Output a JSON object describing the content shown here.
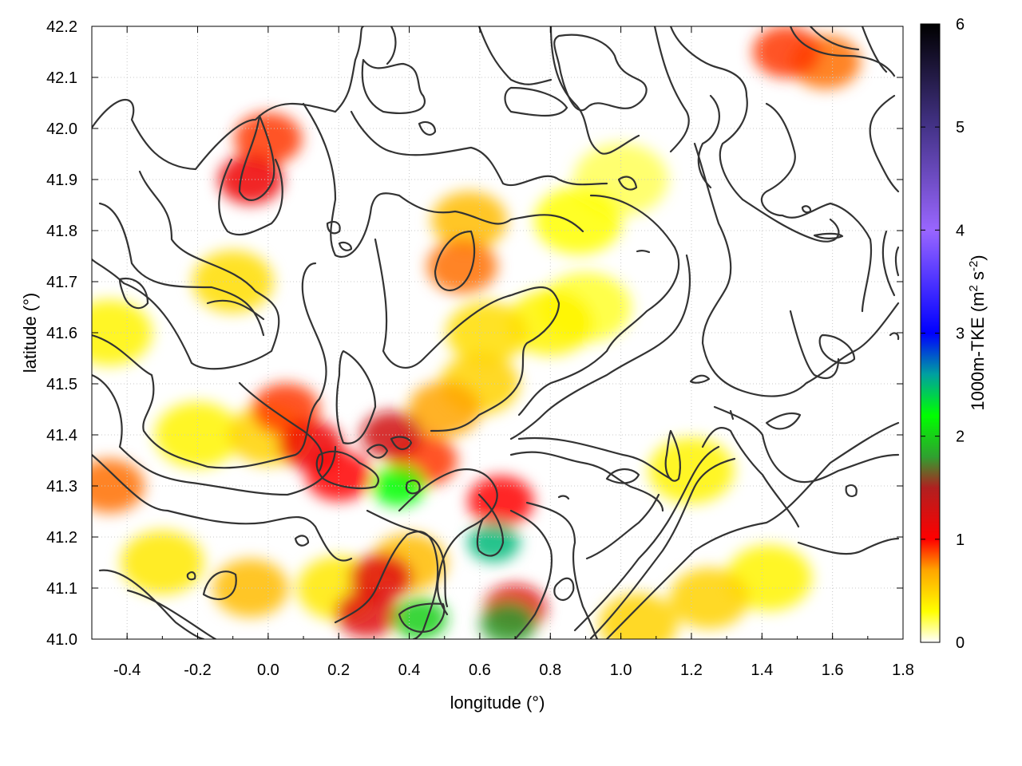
{
  "chart_data": {
    "type": "heatmap",
    "title": "",
    "xlabel": "longitude (°)",
    "ylabel": "latitude (°)",
    "xlim": [
      -0.5,
      1.8
    ],
    "ylim": [
      41.0,
      42.2
    ],
    "x_ticks": [
      -0.4,
      -0.2,
      0.0,
      0.2,
      0.4,
      0.6,
      0.8,
      1.0,
      1.2,
      1.4,
      1.6,
      1.8
    ],
    "y_ticks": [
      41.0,
      41.1,
      41.2,
      41.3,
      41.4,
      41.5,
      41.6,
      41.7,
      41.8,
      41.9,
      42.0,
      42.1,
      42.2
    ],
    "x_tick_labels": [
      "-0.4",
      "-0.2",
      "0.0",
      "0.2",
      "0.4",
      "0.6",
      "0.8",
      "1.0",
      "1.2",
      "1.4",
      "1.6",
      "1.8"
    ],
    "y_tick_labels": [
      "41.0",
      "41.1",
      "41.2",
      "41.3",
      "41.4",
      "41.5",
      "41.6",
      "41.7",
      "41.8",
      "41.9",
      "42.0",
      "42.1",
      "42.2"
    ],
    "grid": true,
    "colorbar": {
      "label_main": "1000m-TKE (m",
      "label_sup1": "2",
      "label_mid": " s",
      "label_sup2": "-2",
      "label_end": ")",
      "range": [
        0,
        6
      ],
      "ticks": [
        0,
        1,
        2,
        3,
        4,
        5,
        6
      ],
      "tick_labels": [
        "0",
        "1",
        "2",
        "3",
        "4",
        "5",
        "6"
      ],
      "stops": [
        {
          "value": 0.0,
          "color": "#ffffff"
        },
        {
          "value": 0.3,
          "color": "#ffff00"
        },
        {
          "value": 0.7,
          "color": "#ffa500"
        },
        {
          "value": 1.0,
          "color": "#ff0000"
        },
        {
          "value": 1.5,
          "color": "#b02020"
        },
        {
          "value": 1.8,
          "color": "#30a030"
        },
        {
          "value": 2.2,
          "color": "#00ff00"
        },
        {
          "value": 2.6,
          "color": "#00a0a0"
        },
        {
          "value": 3.0,
          "color": "#0000ff"
        },
        {
          "value": 4.0,
          "color": "#9966ff"
        },
        {
          "value": 5.0,
          "color": "#443388"
        },
        {
          "value": 6.0,
          "color": "#000000"
        }
      ]
    },
    "tke_blobs": [
      {
        "lon": 0.12,
        "lat": 41.38,
        "value": 1.1
      },
      {
        "lon": 0.2,
        "lat": 41.32,
        "value": 1.0
      },
      {
        "lon": 0.05,
        "lat": 41.45,
        "value": 0.9
      },
      {
        "lon": 0.0,
        "lat": 41.4,
        "value": 0.5
      },
      {
        "lon": -0.2,
        "lat": 41.4,
        "value": 0.35
      },
      {
        "lon": -0.45,
        "lat": 41.3,
        "value": 0.8
      },
      {
        "lon": -0.45,
        "lat": 41.6,
        "value": 0.35
      },
      {
        "lon": -0.1,
        "lat": 41.7,
        "value": 0.45
      },
      {
        "lon": -0.05,
        "lat": 41.9,
        "value": 1.1
      },
      {
        "lon": 0.0,
        "lat": 41.98,
        "value": 0.9
      },
      {
        "lon": 0.35,
        "lat": 41.4,
        "value": 1.3
      },
      {
        "lon": 0.37,
        "lat": 41.3,
        "value": 2.2
      },
      {
        "lon": 0.44,
        "lat": 41.35,
        "value": 0.9
      },
      {
        "lon": 0.5,
        "lat": 41.45,
        "value": 0.7
      },
      {
        "lon": 0.6,
        "lat": 41.5,
        "value": 0.5
      },
      {
        "lon": 0.32,
        "lat": 41.12,
        "value": 1.2
      },
      {
        "lon": 0.28,
        "lat": 41.05,
        "value": 1.2
      },
      {
        "lon": 0.43,
        "lat": 41.04,
        "value": 2.0
      },
      {
        "lon": 0.4,
        "lat": 41.15,
        "value": 0.6
      },
      {
        "lon": 0.64,
        "lat": 41.19,
        "value": 2.5
      },
      {
        "lon": 0.66,
        "lat": 41.27,
        "value": 1.0
      },
      {
        "lon": 0.7,
        "lat": 41.06,
        "value": 1.2
      },
      {
        "lon": 0.68,
        "lat": 41.03,
        "value": 1.8
      },
      {
        "lon": 0.2,
        "lat": 41.1,
        "value": 0.4
      },
      {
        "lon": -0.3,
        "lat": 41.15,
        "value": 0.4
      },
      {
        "lon": -0.05,
        "lat": 41.1,
        "value": 0.6
      },
      {
        "lon": 0.55,
        "lat": 41.73,
        "value": 0.8
      },
      {
        "lon": 0.57,
        "lat": 41.82,
        "value": 0.6
      },
      {
        "lon": 0.8,
        "lat": 41.62,
        "value": 0.35
      },
      {
        "lon": 0.88,
        "lat": 41.82,
        "value": 0.3
      },
      {
        "lon": 0.62,
        "lat": 41.6,
        "value": 0.45
      },
      {
        "lon": 1.0,
        "lat": 41.9,
        "value": 0.2
      },
      {
        "lon": 0.9,
        "lat": 41.65,
        "value": 0.25
      },
      {
        "lon": 1.47,
        "lat": 42.15,
        "value": 0.9
      },
      {
        "lon": 1.58,
        "lat": 42.13,
        "value": 0.8
      },
      {
        "lon": 1.42,
        "lat": 41.12,
        "value": 0.35
      },
      {
        "lon": 1.25,
        "lat": 41.08,
        "value": 0.5
      },
      {
        "lon": 1.05,
        "lat": 41.03,
        "value": 0.5
      },
      {
        "lon": 1.2,
        "lat": 41.33,
        "value": 0.35
      }
    ]
  }
}
